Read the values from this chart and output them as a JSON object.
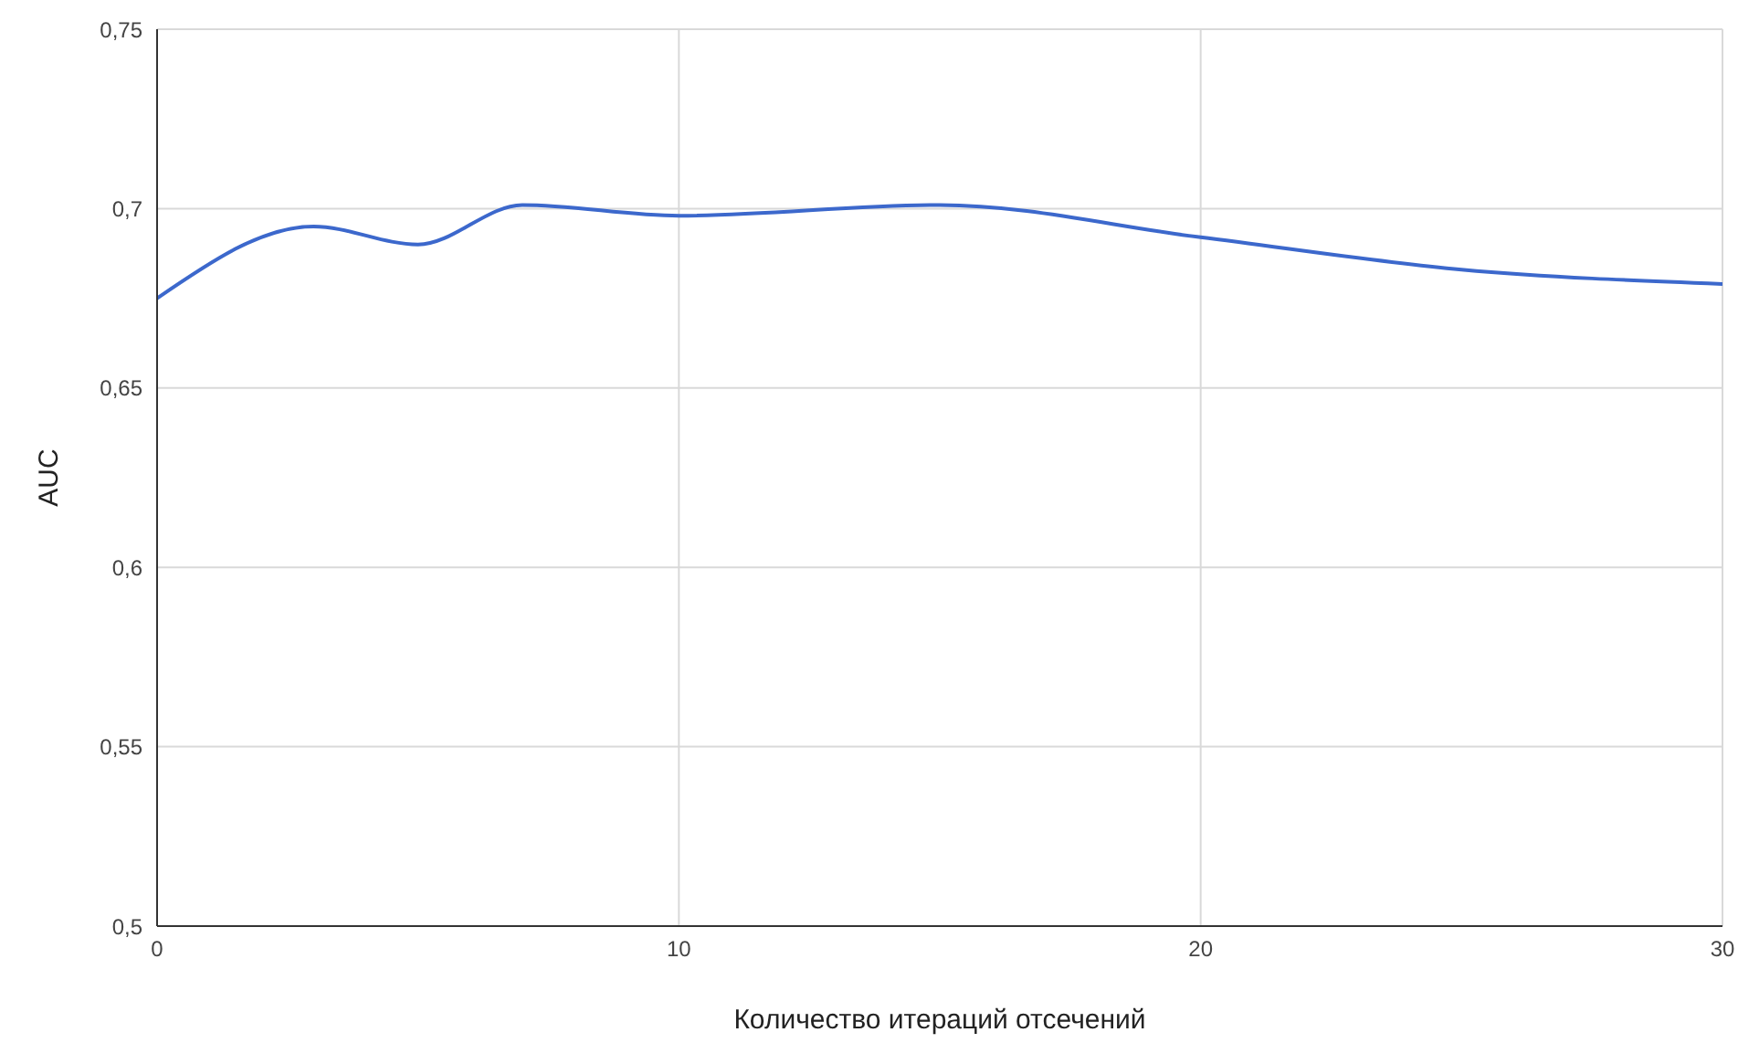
{
  "chart_data": {
    "type": "line",
    "xlabel": "Количество итераций отсечений",
    "ylabel": "AUC",
    "x": [
      0,
      3,
      5,
      7,
      10,
      15,
      20,
      25,
      30
    ],
    "series": [
      {
        "color": "#3c68cc",
        "values": [
          0.675,
          0.695,
          0.69,
          0.701,
          0.698,
          0.701,
          0.692,
          0.683,
          0.679
        ]
      }
    ],
    "xlim": [
      0,
      30
    ],
    "xticks": [
      0,
      10,
      20,
      30
    ],
    "ylim": [
      0.5,
      0.75
    ],
    "yticks": [
      {
        "value": 0.5,
        "label": "0,5"
      },
      {
        "value": 0.55,
        "label": "0,55"
      },
      {
        "value": 0.6,
        "label": "0,6"
      },
      {
        "value": 0.65,
        "label": "0,65"
      },
      {
        "value": 0.7,
        "label": "0,7"
      },
      {
        "value": 0.75,
        "label": "0,75"
      }
    ],
    "grid": true,
    "marker": "none",
    "line_style": "solid"
  }
}
